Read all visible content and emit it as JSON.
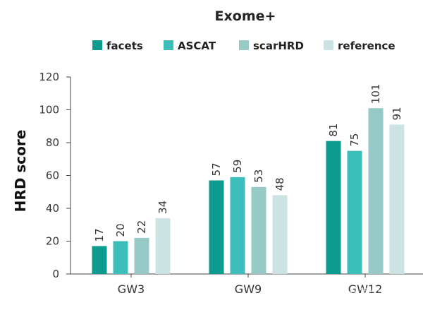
{
  "chart_data": {
    "type": "bar",
    "title": "Exome+",
    "ylabel": "HRD score",
    "xlabel": "",
    "ylim": [
      0,
      120
    ],
    "yticks": [
      0,
      20,
      40,
      60,
      80,
      100,
      120
    ],
    "categories": [
      "GW3",
      "GW9",
      "GW12"
    ],
    "series": [
      {
        "name": "facets",
        "color": "#0d9a8f",
        "values": [
          17,
          57,
          81
        ]
      },
      {
        "name": "ASCAT",
        "color": "#3cbfba",
        "values": [
          20,
          59,
          75
        ]
      },
      {
        "name": "scarHRD",
        "color": "#97c9c7",
        "values": [
          22,
          53,
          101
        ]
      },
      {
        "name": "reference",
        "color": "#cce3e4",
        "values": [
          34,
          48,
          91
        ]
      }
    ],
    "legend_position": "top",
    "grid": false
  },
  "watermark": {
    "text": "知乎 @ 计算生物学科技"
  }
}
